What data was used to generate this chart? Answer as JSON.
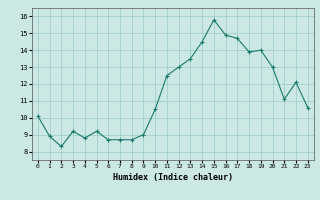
{
  "xlabel": "Humidex (Indice chaleur)",
  "background_color": "#cce8e4",
  "grid_color": "#99ccc7",
  "line_color": "#1a7a6e",
  "marker_color": "#1a7a6e",
  "xlim": [
    -0.5,
    23.5
  ],
  "ylim": [
    7.5,
    16.5
  ],
  "yticks": [
    8,
    9,
    10,
    11,
    12,
    13,
    14,
    15,
    16
  ],
  "xticks": [
    0,
    1,
    2,
    3,
    4,
    5,
    6,
    7,
    8,
    9,
    10,
    11,
    12,
    13,
    14,
    15,
    16,
    17,
    18,
    19,
    20,
    21,
    22,
    23
  ],
  "hours": [
    0,
    1,
    2,
    3,
    4,
    5,
    6,
    7,
    8,
    9,
    10,
    11,
    12,
    13,
    14,
    15,
    16,
    17,
    18,
    19,
    20,
    21,
    22,
    23
  ],
  "humidex": [
    10.1,
    8.9,
    8.3,
    9.2,
    8.8,
    9.2,
    8.7,
    8.7,
    8.7,
    9.0,
    10.5,
    12.5,
    13.0,
    13.5,
    14.5,
    15.8,
    14.9,
    14.7,
    13.9,
    14.0,
    13.0,
    11.1,
    12.1,
    10.6
  ]
}
